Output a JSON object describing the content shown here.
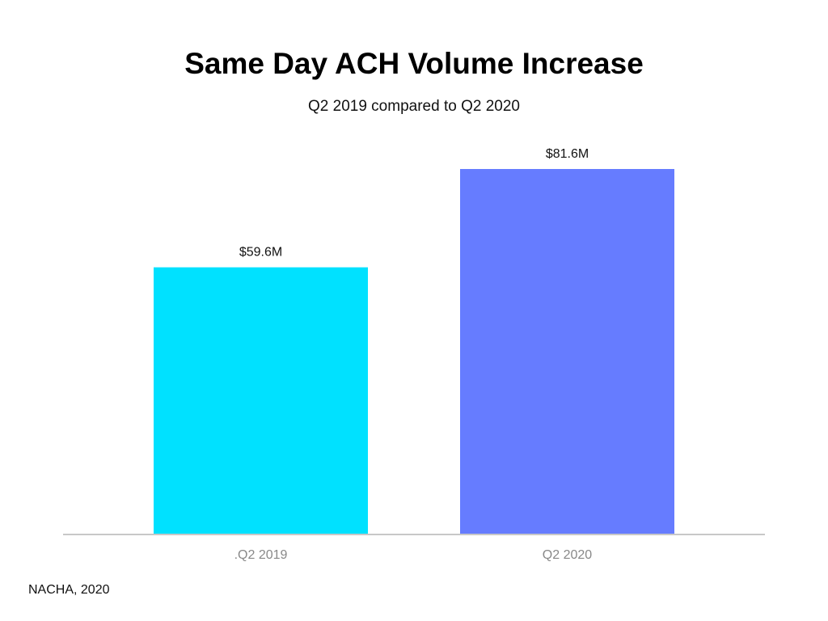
{
  "chart_data": {
    "type": "bar",
    "title": "Same Day ACH Volume Increase",
    "subtitle": "Q2 2019 compared to Q2 2020",
    "categories": [
      ".Q2 2019",
      "Q2 2020"
    ],
    "values": [
      59.6,
      81.6
    ],
    "data_labels": [
      "$59.6M",
      "$81.6M"
    ],
    "colors": [
      "#00E1FF",
      "#667CFF"
    ],
    "xlabel": "",
    "ylabel": "",
    "ylim": [
      0,
      81.6
    ],
    "grid": false,
    "legend": "none"
  },
  "source": "NACHA, 2020"
}
